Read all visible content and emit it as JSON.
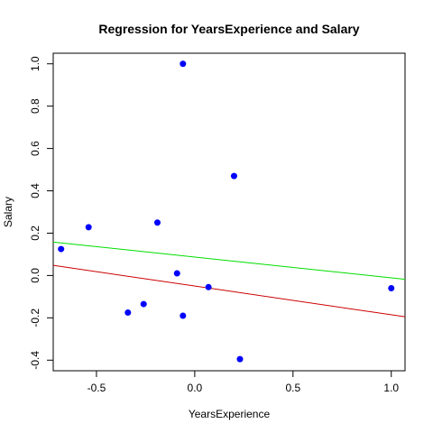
{
  "chart_data": {
    "type": "scatter",
    "title": "Regression for YearsExperience and Salary",
    "xlabel": "YearsExperience",
    "ylabel": "Salary",
    "xlim": [
      -0.72,
      1.07
    ],
    "ylim": [
      -0.45,
      1.05
    ],
    "x_ticks": [
      {
        "value": -0.5,
        "label": "-0.5"
      },
      {
        "value": 0.0,
        "label": "0.0"
      },
      {
        "value": 0.5,
        "label": "0.5"
      },
      {
        "value": 1.0,
        "label": "1.0"
      }
    ],
    "y_ticks": [
      {
        "value": -0.4,
        "label": "-0.4"
      },
      {
        "value": -0.2,
        "label": "-0.2"
      },
      {
        "value": 0.0,
        "label": "0.0"
      },
      {
        "value": 0.2,
        "label": "0.2"
      },
      {
        "value": 0.4,
        "label": "0.4"
      },
      {
        "value": 0.6,
        "label": "0.6"
      },
      {
        "value": 0.8,
        "label": "0.8"
      },
      {
        "value": 1.0,
        "label": "1.0"
      }
    ],
    "points": [
      {
        "x": -0.68,
        "y": 0.125
      },
      {
        "x": -0.54,
        "y": 0.228
      },
      {
        "x": -0.34,
        "y": -0.175
      },
      {
        "x": -0.26,
        "y": -0.135
      },
      {
        "x": -0.19,
        "y": 0.25
      },
      {
        "x": -0.09,
        "y": 0.01
      },
      {
        "x": -0.06,
        "y": 1.0
      },
      {
        "x": -0.06,
        "y": -0.19
      },
      {
        "x": 0.07,
        "y": -0.055
      },
      {
        "x": 0.2,
        "y": 0.47
      },
      {
        "x": 0.23,
        "y": -0.395
      },
      {
        "x": 1.0,
        "y": -0.06
      }
    ],
    "point_color": "#0000ff",
    "lines": [
      {
        "color": "#00dd00",
        "x": [
          -0.72,
          1.07
        ],
        "y": [
          0.158,
          -0.018
        ]
      },
      {
        "color": "#cc0000",
        "x": [
          -0.72,
          1.07
        ],
        "y": [
          0.048,
          -0.195
        ]
      }
    ],
    "grid": false,
    "legend": "none"
  }
}
